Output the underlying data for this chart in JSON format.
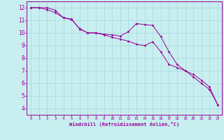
{
  "xlabel": "Windchill (Refroidissement éolien,°C)",
  "background_color": "#c8eef0",
  "grid_color": "#a8d8dc",
  "line_color": "#990099",
  "x_hours": [
    0,
    1,
    2,
    3,
    4,
    5,
    6,
    7,
    8,
    9,
    10,
    11,
    12,
    13,
    14,
    15,
    16,
    17,
    18,
    19,
    20,
    21,
    22,
    23
  ],
  "y_actual": [
    12,
    12,
    12,
    11.8,
    11.2,
    11.1,
    10.3,
    10.0,
    10.0,
    9.9,
    9.85,
    9.75,
    10.1,
    10.75,
    10.65,
    10.6,
    9.7,
    8.5,
    7.5,
    7.0,
    6.7,
    6.25,
    5.7,
    4.3
  ],
  "y_smooth": [
    12,
    12,
    11.85,
    11.6,
    11.2,
    11.05,
    10.35,
    10.0,
    10.0,
    9.85,
    9.65,
    9.5,
    9.35,
    9.1,
    9.0,
    9.3,
    8.5,
    7.5,
    7.25,
    7.0,
    6.5,
    6.0,
    5.5,
    4.3
  ],
  "ylim": [
    3.5,
    12.5
  ],
  "yticks": [
    4,
    5,
    6,
    7,
    8,
    9,
    10,
    11,
    12
  ],
  "xlim": [
    -0.5,
    23.5
  ],
  "xticks": [
    0,
    1,
    2,
    3,
    4,
    5,
    6,
    7,
    8,
    9,
    10,
    11,
    12,
    13,
    14,
    15,
    16,
    17,
    18,
    19,
    20,
    21,
    22,
    23
  ]
}
